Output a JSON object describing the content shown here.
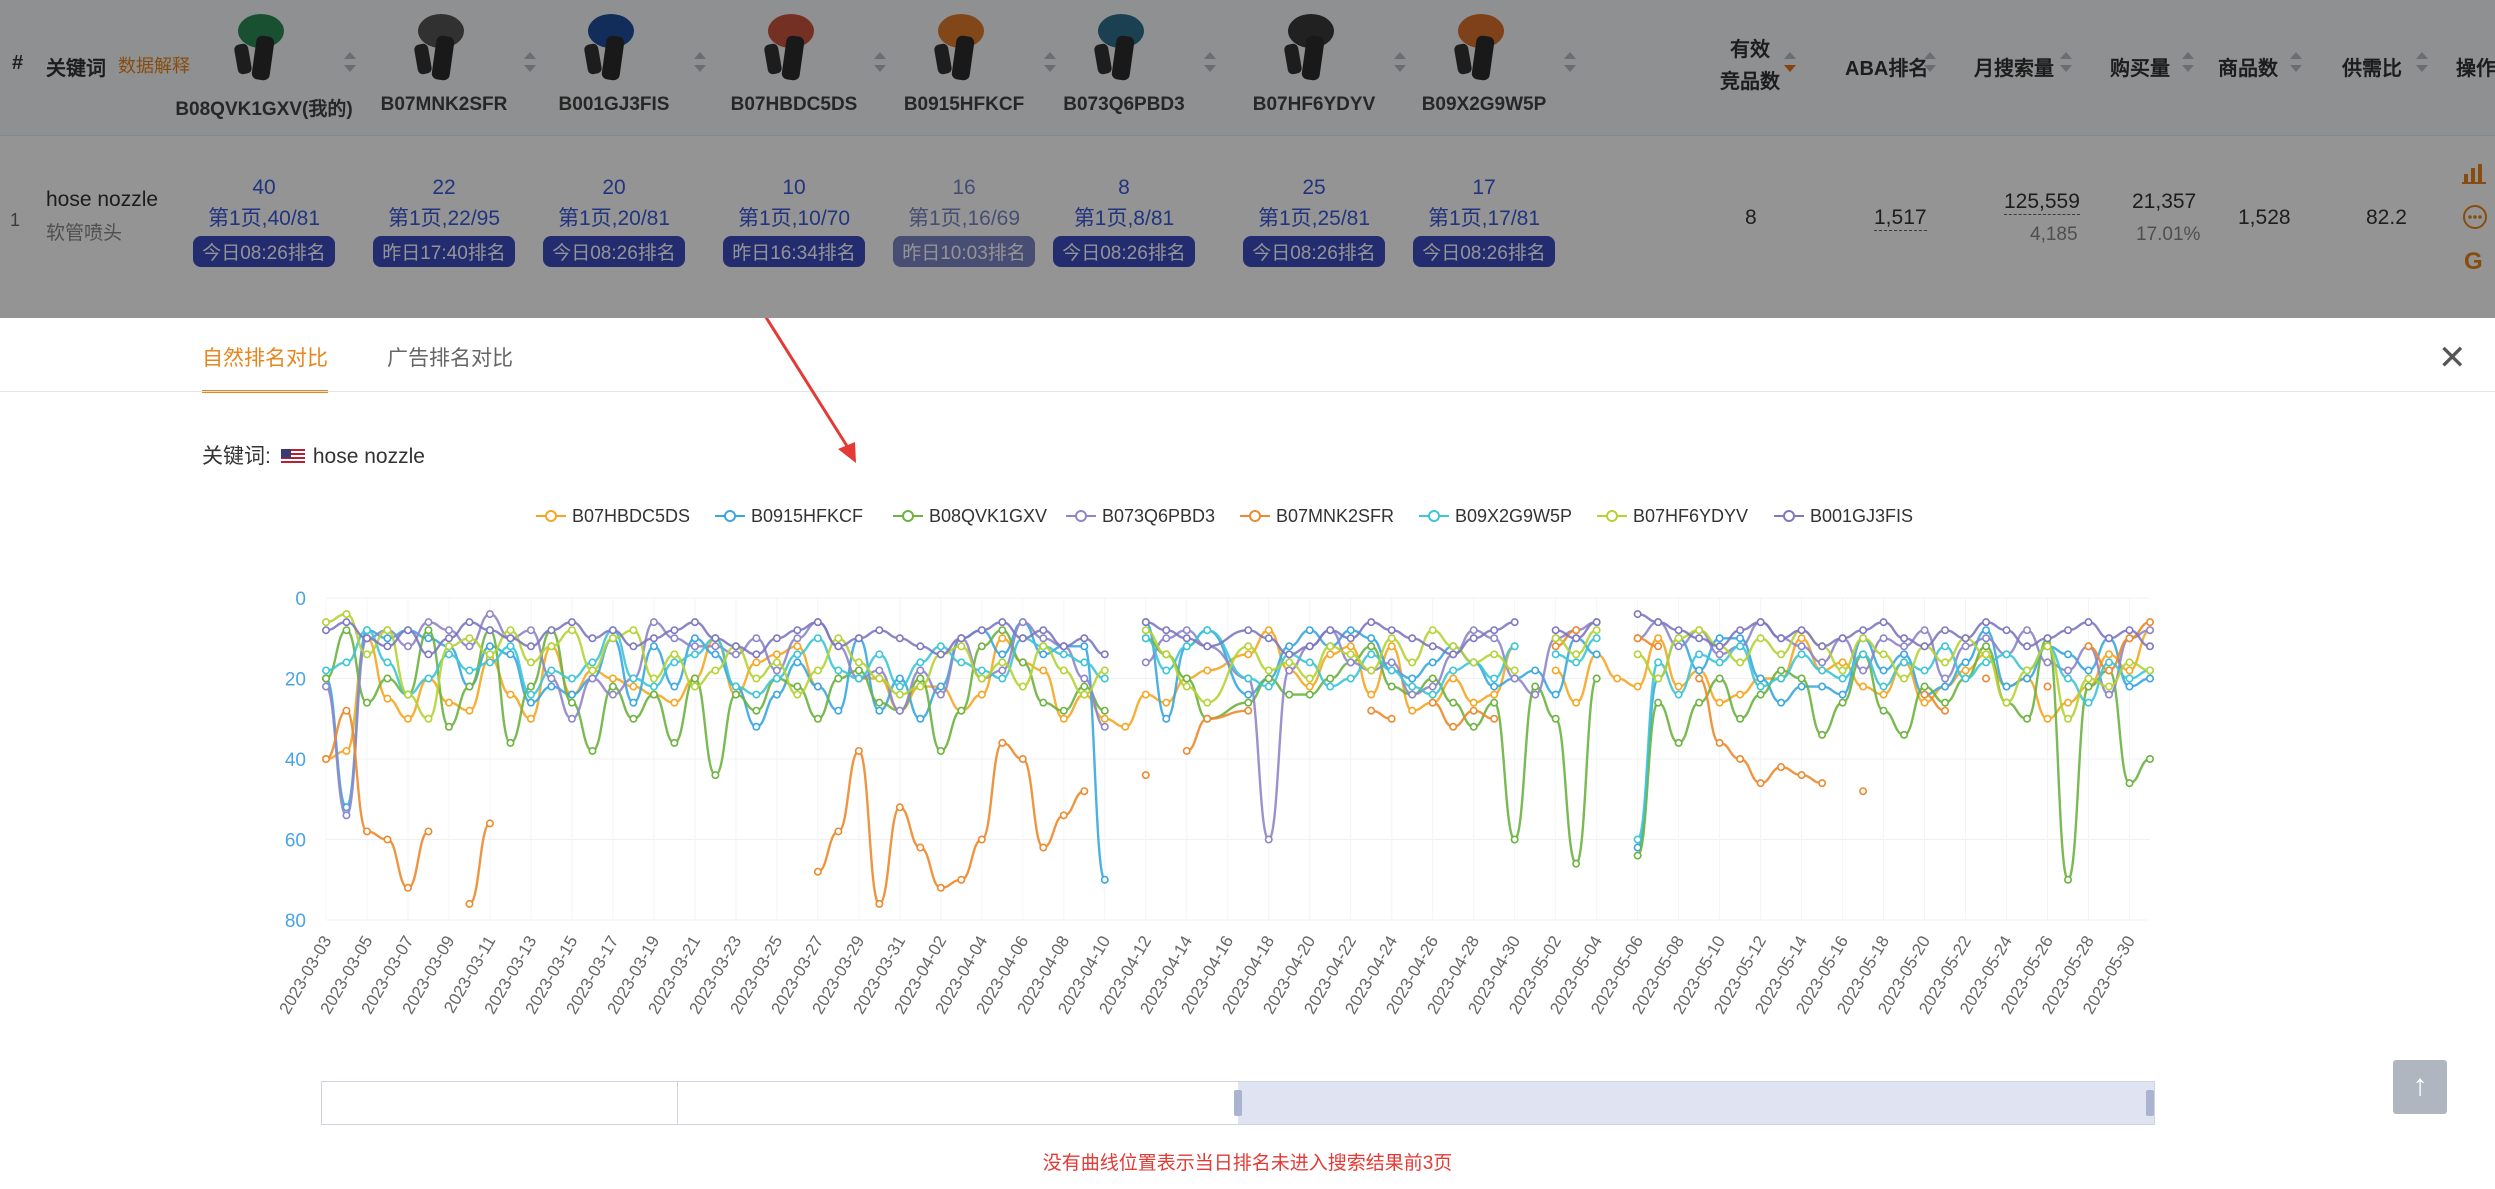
{
  "table": {
    "headers": {
      "index": "#",
      "keyword": "关键词",
      "keyword_link": "数据解释",
      "effective": "有效\n竞品数",
      "aba": "ABA排名",
      "monthly_search": "月搜索量",
      "purchase": "购买量",
      "products": "商品数",
      "supply_demand": "供需比",
      "actions": "操作"
    },
    "products": [
      {
        "asin": "B08QVK1GXV(我的)",
        "color": "#2e8b57"
      },
      {
        "asin": "B07MNK2SFR",
        "color": "#555555"
      },
      {
        "asin": "B001GJ3FIS",
        "color": "#1f4e9c"
      },
      {
        "asin": "B07HBDC5DS",
        "color": "#c8553d"
      },
      {
        "asin": "B0915HFKCF",
        "color": "#e07b2a"
      },
      {
        "asin": "B073Q6PBD3",
        "color": "#2e6f8e"
      },
      {
        "asin": "B07HF6YDYV",
        "color": "#3a3a3a"
      },
      {
        "asin": "B09X2G9W5P",
        "color": "#d9702b"
      }
    ],
    "row": {
      "index": "1",
      "keyword": "hose nozzle",
      "keyword_cn": "软管喷头",
      "ranks": [
        {
          "rank": "40",
          "page": "第1页,40/81",
          "tag": "今日08:26排名",
          "faded": false
        },
        {
          "rank": "22",
          "page": "第1页,22/95",
          "tag": "昨日17:40排名",
          "faded": false
        },
        {
          "rank": "20",
          "page": "第1页,20/81",
          "tag": "今日08:26排名",
          "faded": false
        },
        {
          "rank": "10",
          "page": "第1页,10/70",
          "tag": "昨日16:34排名",
          "faded": false
        },
        {
          "rank": "16",
          "page": "第1页,16/69",
          "tag": "昨日10:03排名",
          "faded": true
        },
        {
          "rank": "8",
          "page": "第1页,8/81",
          "tag": "今日08:26排名",
          "faded": false
        },
        {
          "rank": "25",
          "page": "第1页,25/81",
          "tag": "今日08:26排名",
          "faded": false
        },
        {
          "rank": "17",
          "page": "第1页,17/81",
          "tag": "今日08:26排名",
          "faded": false
        }
      ],
      "effective": "8",
      "aba": "1,517",
      "monthly_search": "125,559",
      "monthly_search_sub": "4,185",
      "purchase": "21,357",
      "purchase_pct": "17.01%",
      "products": "1,528",
      "supply_demand": "82.2"
    }
  },
  "modal": {
    "tabs": [
      {
        "label": "自然排名对比",
        "active": true
      },
      {
        "label": "广告排名对比",
        "active": false
      }
    ],
    "keyword_label": "关键词:",
    "keyword_value": "hose nozzle",
    "note": "没有曲线位置表示当日排名未进入搜索结果前3页"
  },
  "chart_data": {
    "type": "line",
    "title": "",
    "xlabel": "",
    "ylabel": "",
    "y_inverted": true,
    "ylim": [
      0,
      80
    ],
    "y_ticks": [
      0,
      20,
      40,
      60,
      80
    ],
    "x_tick_labels": [
      "2023-03-03",
      "2023-03-05",
      "2023-03-07",
      "2023-03-09",
      "2023-03-11",
      "2023-03-13",
      "2023-03-15",
      "2023-03-17",
      "2023-03-19",
      "2023-03-21",
      "2023-03-23",
      "2023-03-25",
      "2023-03-27",
      "2023-03-29",
      "2023-03-31",
      "2023-04-02",
      "2023-04-04",
      "2023-04-06",
      "2023-04-08",
      "2023-04-10",
      "2023-04-12",
      "2023-04-14",
      "2023-04-16",
      "2023-04-18",
      "2023-04-20",
      "2023-04-22",
      "2023-04-24",
      "2023-04-26",
      "2023-04-28",
      "2023-04-30",
      "2023-05-02",
      "2023-05-04",
      "2023-05-06",
      "2023-05-08",
      "2023-05-10",
      "2023-05-12",
      "2023-05-14",
      "2023-05-16",
      "2023-05-18",
      "2023-05-20",
      "2023-05-22",
      "2023-05-24",
      "2023-05-26",
      "2023-05-28",
      "2023-05-30"
    ],
    "x_start": "2023-03-03",
    "x_end": "2023-05-31",
    "legend_position": "top-center",
    "grid": true,
    "series": [
      {
        "name": "B07HBDC5DS",
        "color": "#f5a623",
        "values": [
          40,
          38,
          10,
          25,
          30,
          20,
          26,
          28,
          15,
          24,
          30,
          12,
          24,
          18,
          20,
          22,
          24,
          26,
          20,
          10,
          24,
          16,
          14,
          12,
          22,
          null,
          20,
          20,
          28,
          22,
          22,
          28,
          24,
          10,
          16,
          18,
          30,
          24,
          30,
          32,
          24,
          26,
          20,
          18,
          14,
          8,
          18,
          22,
          14,
          12,
          24,
          12,
          28,
          26,
          20,
          26,
          24,
          12,
          null,
          18,
          26,
          14,
          20,
          22,
          10,
          22,
          18,
          26,
          24,
          20,
          20,
          10,
          18,
          16,
          22,
          24,
          16,
          26,
          22,
          18,
          14,
          22,
          20,
          30,
          26,
          22,
          14,
          18,
          8
        ]
      },
      {
        "name": "B0915HFKCF",
        "color": "#3aa7e0",
        "values": [
          20,
          52,
          8,
          10,
          8,
          10,
          12,
          22,
          12,
          14,
          26,
          22,
          24,
          20,
          10,
          26,
          12,
          22,
          10,
          14,
          22,
          32,
          24,
          16,
          22,
          28,
          10,
          28,
          20,
          30,
          22,
          10,
          8,
          14,
          6,
          14,
          12,
          12,
          70,
          null,
          6,
          30,
          12,
          8,
          24,
          20,
          12,
          8,
          12,
          8,
          10,
          18,
          20,
          16,
          12,
          16,
          22,
          20,
          18,
          24,
          10,
          14,
          null,
          62,
          20,
          10,
          18,
          10,
          10,
          20,
          26,
          22,
          22,
          24,
          10,
          18,
          14,
          24,
          22,
          16,
          8,
          22,
          20,
          12,
          14,
          18,
          10,
          22,
          20
        ]
      },
      {
        "name": "B08QVK1GXV",
        "color": "#6cb33f",
        "values": [
          20,
          8,
          26,
          20,
          24,
          8,
          32,
          22,
          8,
          36,
          22,
          8,
          26,
          38,
          22,
          30,
          24,
          36,
          20,
          44,
          24,
          28,
          20,
          22,
          30,
          20,
          18,
          26,
          28,
          20,
          38,
          28,
          12,
          8,
          16,
          26,
          28,
          22,
          28,
          null,
          10,
          14,
          20,
          30,
          26,
          20,
          24,
          24,
          20,
          16,
          12,
          22,
          24,
          20,
          26,
          32,
          26,
          60,
          22,
          30,
          66,
          20,
          null,
          64,
          26,
          36,
          26,
          20,
          30,
          24,
          18,
          20,
          34,
          26,
          14,
          28,
          34,
          22,
          26,
          20,
          12,
          26,
          30,
          10,
          70,
          22,
          18,
          46,
          40
        ]
      },
      {
        "name": "B073Q6PBD3",
        "color": "#8f86c8",
        "values": [
          22,
          54,
          10,
          8,
          12,
          6,
          8,
          12,
          4,
          10,
          8,
          20,
          30,
          20,
          24,
          20,
          6,
          10,
          12,
          12,
          14,
          10,
          18,
          10,
          6,
          12,
          20,
          18,
          28,
          18,
          24,
          10,
          20,
          18,
          6,
          10,
          12,
          20,
          32,
          null,
          16,
          10,
          8,
          12,
          20,
          60,
          18,
          12,
          8,
          16,
          18,
          16,
          24,
          22,
          14,
          8,
          10,
          20,
          24,
          10,
          8,
          6,
          null,
          10,
          6,
          12,
          8,
          14,
          12,
          6,
          10,
          12,
          16,
          10,
          18,
          10,
          12,
          8,
          20,
          12,
          10,
          14,
          8,
          16,
          18,
          12,
          24,
          10,
          8
        ]
      },
      {
        "name": "B07MNK2SFR",
        "color": "#ec8a2e",
        "values": [
          40,
          28,
          58,
          60,
          72,
          58,
          null,
          76,
          56,
          null,
          null,
          null,
          null,
          null,
          null,
          null,
          null,
          null,
          null,
          null,
          null,
          null,
          null,
          null,
          68,
          58,
          38,
          76,
          52,
          62,
          72,
          70,
          60,
          36,
          40,
          62,
          54,
          48,
          null,
          null,
          44,
          null,
          38,
          30,
          28,
          null,
          null,
          null,
          null,
          null,
          28,
          30,
          null,
          26,
          32,
          28,
          30,
          null,
          null,
          12,
          8,
          null,
          null,
          10,
          12,
          null,
          20,
          36,
          40,
          46,
          42,
          44,
          46,
          null,
          48,
          null,
          null,
          24,
          28,
          null,
          20,
          null,
          null,
          22,
          null,
          12,
          18,
          10,
          6
        ]
      },
      {
        "name": "B09X2G9W5P",
        "color": "#3ec5d6",
        "values": [
          18,
          16,
          8,
          16,
          24,
          20,
          14,
          18,
          16,
          12,
          24,
          18,
          20,
          16,
          8,
          20,
          22,
          16,
          14,
          10,
          22,
          24,
          20,
          14,
          10,
          18,
          20,
          14,
          22,
          16,
          12,
          16,
          18,
          20,
          10,
          12,
          14,
          16,
          20,
          null,
          10,
          18,
          12,
          8,
          20,
          22,
          14,
          16,
          22,
          20,
          14,
          18,
          22,
          24,
          18,
          16,
          20,
          12,
          null,
          14,
          16,
          10,
          null,
          60,
          16,
          24,
          14,
          16,
          12,
          22,
          20,
          14,
          18,
          20,
          14,
          22,
          16,
          18,
          12,
          20,
          16,
          14,
          18,
          12,
          20,
          26,
          16,
          20,
          18
        ]
      },
      {
        "name": "B07HF6YDYV",
        "color": "#b5d334",
        "values": [
          6,
          4,
          14,
          8,
          24,
          30,
          12,
          10,
          14,
          8,
          16,
          12,
          8,
          18,
          10,
          8,
          20,
          14,
          22,
          18,
          12,
          20,
          16,
          24,
          18,
          10,
          16,
          20,
          24,
          22,
          14,
          12,
          20,
          16,
          22,
          12,
          18,
          24,
          18,
          null,
          8,
          14,
          22,
          26,
          12,
          18,
          16,
          20,
          12,
          14,
          18,
          10,
          16,
          8,
          12,
          16,
          14,
          18,
          null,
          10,
          14,
          8,
          null,
          14,
          20,
          10,
          8,
          12,
          16,
          10,
          14,
          8,
          12,
          18,
          10,
          14,
          20,
          12,
          16,
          10,
          14,
          26,
          18,
          12,
          30,
          20,
          22,
          16,
          18
        ]
      },
      {
        "name": "B001GJ3FIS",
        "color": "#7d78c0",
        "values": [
          8,
          6,
          10,
          12,
          8,
          14,
          10,
          6,
          8,
          10,
          12,
          8,
          6,
          10,
          8,
          12,
          10,
          8,
          6,
          10,
          12,
          14,
          10,
          8,
          6,
          12,
          10,
          8,
          10,
          12,
          14,
          10,
          8,
          6,
          10,
          8,
          12,
          10,
          14,
          null,
          6,
          8,
          10,
          12,
          8,
          10,
          14,
          12,
          8,
          10,
          6,
          8,
          10,
          12,
          14,
          10,
          8,
          6,
          null,
          8,
          10,
          6,
          null,
          4,
          6,
          8,
          10,
          12,
          8,
          6,
          10,
          8,
          12,
          10,
          8,
          6,
          10,
          12,
          8,
          10,
          6,
          8,
          12,
          10,
          8,
          6,
          10,
          8,
          12
        ]
      }
    ]
  },
  "zoom_window": {
    "start_fraction": 0.5,
    "end_fraction": 1.0
  },
  "icons": {
    "close": "close-icon",
    "back_to_top": "arrow-up-icon",
    "chart_action": "bar-chart-icon",
    "more_action": "more-icon",
    "google_action": "google-icon"
  }
}
